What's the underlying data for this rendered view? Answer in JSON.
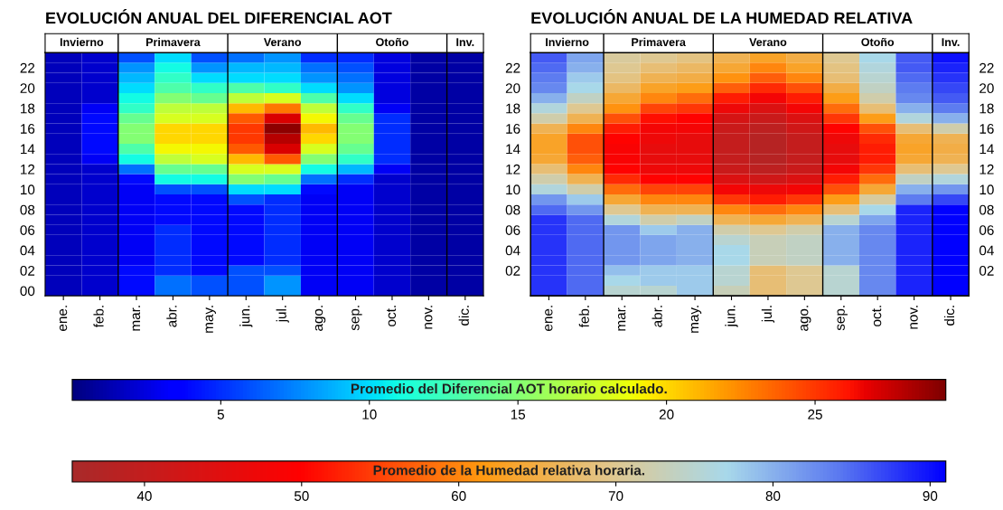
{
  "chart_data": [
    {
      "type": "heatmap",
      "title": "EVOLUCIÓN ANUAL DEL DIFERENCIAL AOT",
      "clabel": "Promedio del Diferencial AOT horario calculado.",
      "categories": [
        "ene.",
        "feb.",
        "mar.",
        "abr.",
        "may.",
        "jun.",
        "jul.",
        "ago.",
        "sep.",
        "oct.",
        "nov.",
        "dic."
      ],
      "y_categories": [
        null,
        "22",
        null,
        "20",
        null,
        "18",
        null,
        "16",
        null,
        "14",
        null,
        "12",
        null,
        "10",
        null,
        "08",
        null,
        "06",
        null,
        "04",
        null,
        "02",
        null,
        "00"
      ],
      "annotations": [
        "Invierno",
        "Primavera",
        "Verano",
        "Otoño",
        "Inv."
      ],
      "clim": [
        0,
        29.4
      ],
      "cticks": [
        5,
        10,
        15,
        20,
        25
      ],
      "cells": [
        [
          1.5,
          2,
          6,
          10,
          6,
          7,
          8,
          5,
          5,
          2.5,
          1,
          1
        ],
        [
          1.5,
          2,
          8,
          11,
          8,
          9,
          9,
          7,
          6,
          2.5,
          1,
          1
        ],
        [
          1.5,
          2,
          9,
          12,
          10,
          10,
          10,
          8,
          7,
          2.5,
          1,
          1
        ],
        [
          1.5,
          2,
          10,
          13,
          12,
          13,
          12,
          10,
          8,
          2.5,
          1,
          1
        ],
        [
          1.5,
          2,
          11,
          15,
          14,
          17,
          18,
          13,
          10,
          2.5,
          1,
          1
        ],
        [
          1.5,
          3,
          12,
          17,
          17,
          21,
          23,
          17,
          12,
          3,
          1,
          1
        ],
        [
          1.5,
          4,
          14,
          18,
          18,
          24,
          27,
          19,
          14,
          5,
          1,
          1
        ],
        [
          1.5,
          4,
          15,
          20,
          20,
          25,
          29,
          21,
          15,
          5,
          1,
          1
        ],
        [
          1.5,
          4,
          15,
          20,
          20,
          25,
          28,
          20,
          15,
          5,
          1,
          1
        ],
        [
          1.5,
          4,
          13,
          19,
          19,
          24,
          27,
          18,
          14,
          5,
          1,
          1
        ],
        [
          1.5,
          3,
          11,
          17,
          18,
          21,
          24,
          15,
          12,
          5,
          1,
          1
        ],
        [
          1.5,
          2,
          7,
          14,
          14,
          18,
          18,
          11,
          9,
          3,
          1,
          1
        ],
        [
          1.5,
          2,
          4,
          11,
          11,
          15,
          14,
          7,
          5,
          2,
          1,
          1
        ],
        [
          1.5,
          2,
          3,
          6,
          6,
          10,
          10,
          4,
          3,
          2,
          1,
          1
        ],
        [
          1.5,
          2,
          3,
          4,
          4,
          6,
          5,
          3,
          3,
          2,
          1,
          1
        ],
        [
          1.5,
          2,
          3,
          4,
          4,
          4,
          5,
          3,
          3,
          2,
          1,
          1
        ],
        [
          1.5,
          2,
          3,
          4,
          4,
          4,
          5,
          3,
          3,
          2,
          1,
          1
        ],
        [
          1.5,
          2,
          3,
          5,
          4,
          4,
          5,
          3,
          3,
          2,
          1,
          1
        ],
        [
          1.5,
          2,
          3,
          5,
          4,
          4,
          5,
          3,
          3,
          2,
          1,
          1
        ],
        [
          1.5,
          2,
          3,
          5,
          4,
          4,
          5,
          3,
          3,
          2,
          1,
          1
        ],
        [
          1.5,
          2,
          3,
          5,
          4,
          4,
          5,
          3,
          3,
          2,
          1,
          1
        ],
        [
          1.5,
          2,
          4,
          5,
          4,
          6,
          6,
          3,
          3,
          2,
          1,
          1
        ],
        [
          1.5,
          2,
          4,
          7,
          6,
          6,
          8,
          3,
          3,
          2,
          1,
          1
        ],
        [
          1.5,
          2,
          4,
          7,
          6,
          6,
          8,
          3,
          3,
          2,
          1,
          1
        ]
      ]
    },
    {
      "type": "heatmap",
      "title": "EVOLUCIÓN ANUAL DE LA HUMEDAD RELATIVA",
      "clabel": "Promedio de la Humedad relativa horaria.",
      "categories": [
        "ene.",
        "feb.",
        "mar.",
        "abr.",
        "may.",
        "jun.",
        "jul.",
        "ago.",
        "sep.",
        "oct.",
        "nov.",
        "dic."
      ],
      "y_categories": [
        null,
        "22",
        null,
        "20",
        null,
        "18",
        null,
        "16",
        null,
        "14",
        null,
        "12",
        null,
        "10",
        null,
        "08",
        null,
        "06",
        null,
        "04",
        null,
        "02",
        null,
        null
      ],
      "y2_categories": [
        null,
        "22",
        null,
        "20",
        null,
        "18",
        null,
        "16",
        null,
        "14",
        null,
        "12",
        null,
        "10",
        null,
        "08",
        null,
        "06",
        null,
        "04",
        null,
        "02",
        null,
        null
      ],
      "annotations": [
        "Invierno",
        "Primavera",
        "Verano",
        "Otoño",
        "Inv."
      ],
      "clim": [
        35.4,
        91
      ],
      "cticks": [
        40,
        50,
        60,
        70,
        80,
        90
      ],
      "cells": [
        [
          86,
          81,
          71,
          70,
          69,
          66,
          63,
          65,
          70,
          77,
          86,
          90
        ],
        [
          85,
          80,
          70,
          68,
          67,
          64,
          60,
          63,
          69,
          76,
          86,
          89
        ],
        [
          84,
          78,
          69,
          66,
          65,
          61,
          57,
          60,
          68,
          75,
          85,
          88
        ],
        [
          83,
          77,
          67,
          63,
          62,
          57,
          53,
          56,
          65,
          74,
          84,
          87
        ],
        [
          80,
          74,
          64,
          60,
          58,
          52,
          48,
          52,
          62,
          72,
          83,
          86
        ],
        [
          76,
          70,
          61,
          55,
          54,
          47,
          44,
          48,
          58,
          68,
          80,
          84
        ],
        [
          72,
          66,
          56,
          51,
          50,
          43,
          41,
          44,
          54,
          62,
          76,
          80
        ],
        [
          66,
          60,
          52,
          48,
          48,
          41,
          39,
          42,
          50,
          56,
          68,
          72
        ],
        [
          63,
          56,
          50,
          47,
          46,
          40,
          38,
          40,
          47,
          53,
          64,
          66
        ],
        [
          63,
          56,
          49,
          46,
          46,
          40,
          38,
          40,
          46,
          52,
          63,
          65
        ],
        [
          64,
          57,
          49,
          46,
          46,
          40,
          38,
          40,
          46,
          52,
          64,
          66
        ],
        [
          68,
          60,
          50,
          47,
          47,
          41,
          39,
          41,
          48,
          54,
          68,
          70
        ],
        [
          72,
          66,
          53,
          50,
          50,
          44,
          42,
          44,
          52,
          58,
          74,
          76
        ],
        [
          76,
          72,
          58,
          55,
          55,
          48,
          47,
          48,
          56,
          64,
          80,
          82
        ],
        [
          82,
          78,
          64,
          60,
          60,
          54,
          52,
          54,
          62,
          71,
          84,
          87
        ],
        [
          85,
          82,
          70,
          66,
          66,
          60,
          58,
          60,
          68,
          77,
          89,
          91
        ],
        [
          88,
          85,
          76,
          72,
          74,
          66,
          64,
          66,
          75,
          81,
          89,
          91
        ],
        [
          88,
          85,
          82,
          78,
          80,
          72,
          70,
          72,
          80,
          83,
          89,
          91
        ],
        [
          88,
          85,
          82,
          81,
          80,
          75,
          73,
          74,
          80,
          83,
          89,
          91
        ],
        [
          88,
          85,
          82,
          81,
          80,
          77,
          73,
          74,
          80,
          83,
          89,
          91
        ],
        [
          88,
          85,
          82,
          81,
          80,
          77,
          73,
          74,
          80,
          83,
          89,
          91
        ],
        [
          88,
          85,
          79,
          78,
          78,
          75,
          68,
          70,
          75,
          83,
          89,
          91
        ],
        [
          88,
          85,
          77,
          78,
          78,
          75,
          68,
          70,
          75,
          83,
          89,
          91
        ],
        [
          88,
          85,
          75,
          75,
          78,
          73,
          68,
          70,
          75,
          83,
          89,
          91
        ]
      ]
    }
  ]
}
